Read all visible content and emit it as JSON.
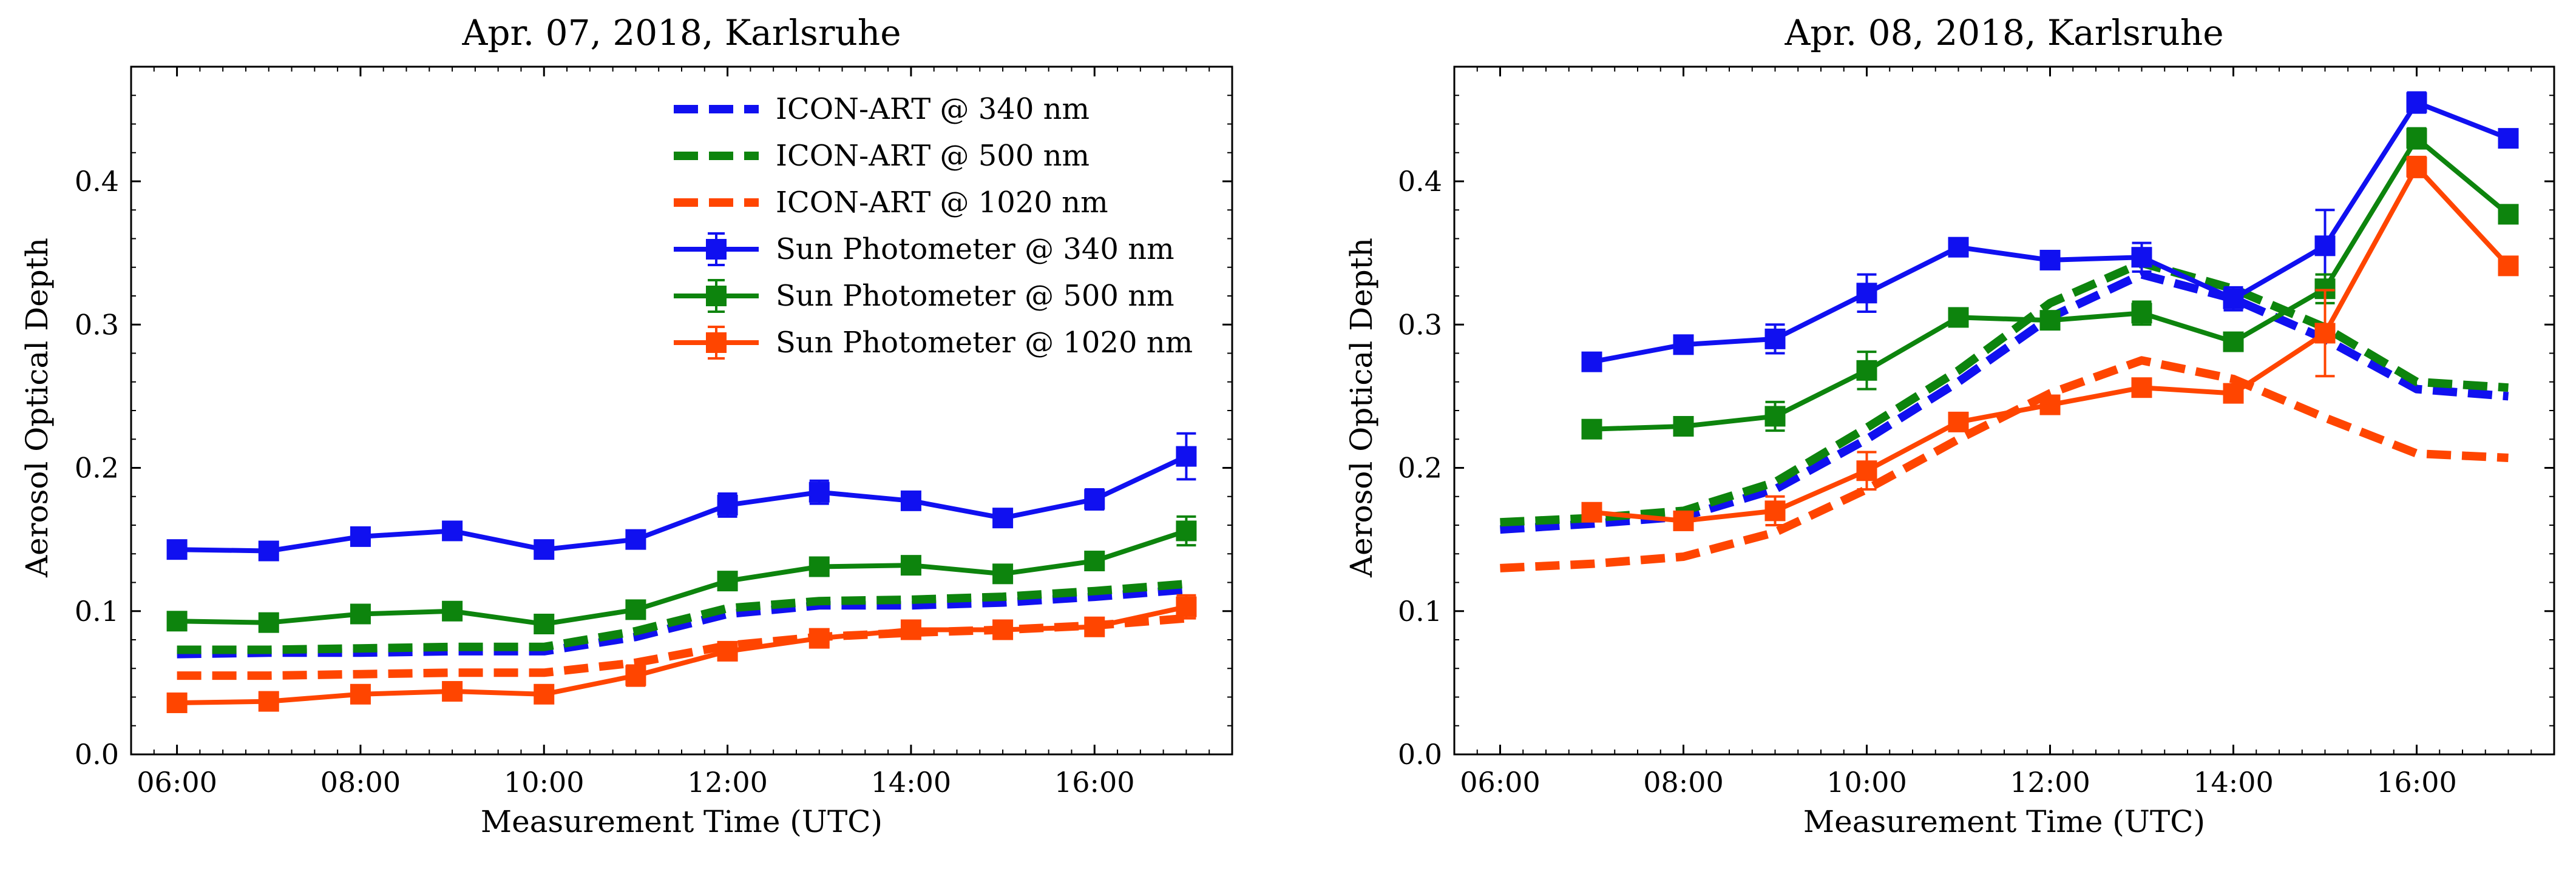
{
  "colors": {
    "blue": "#1010f0",
    "green": "#0d840d",
    "orange": "#ff4500"
  },
  "chart_data": [
    {
      "type": "line",
      "title": "Apr. 07, 2018, Karlsruhe",
      "xlabel": "Measurement Time (UTC)",
      "ylabel": "Aerosol Optical Depth",
      "xlim": [
        5.5,
        17.5
      ],
      "ylim": [
        0.0,
        0.48
      ],
      "xticks": [
        6,
        8,
        10,
        12,
        14,
        16
      ],
      "xtick_labels": [
        "06:00",
        "08:00",
        "10:00",
        "12:00",
        "14:00",
        "16:00"
      ],
      "yticks": [
        0.0,
        0.1,
        0.2,
        0.3,
        0.4
      ],
      "ytick_labels": [
        "0.0",
        "0.1",
        "0.2",
        "0.3",
        "0.4"
      ],
      "legend_position": "top-right",
      "series": [
        {
          "name": "ICON-ART @ 340 nm",
          "color": "blue",
          "style": "dashed",
          "x": [
            6,
            7,
            8,
            9,
            10,
            11,
            12,
            13,
            14,
            15,
            16,
            17
          ],
          "y": [
            0.07,
            0.071,
            0.071,
            0.072,
            0.072,
            0.082,
            0.098,
            0.104,
            0.104,
            0.106,
            0.11,
            0.115
          ]
        },
        {
          "name": "ICON-ART @ 500 nm",
          "color": "green",
          "style": "dashed",
          "x": [
            6,
            7,
            8,
            9,
            10,
            11,
            12,
            13,
            14,
            15,
            16,
            17
          ],
          "y": [
            0.073,
            0.073,
            0.074,
            0.075,
            0.075,
            0.086,
            0.102,
            0.107,
            0.108,
            0.11,
            0.114,
            0.119
          ]
        },
        {
          "name": "ICON-ART @ 1020 nm",
          "color": "orange",
          "style": "dashed",
          "x": [
            6,
            7,
            8,
            9,
            10,
            11,
            12,
            13,
            14,
            15,
            16,
            17
          ],
          "y": [
            0.055,
            0.055,
            0.056,
            0.057,
            0.057,
            0.064,
            0.076,
            0.082,
            0.085,
            0.087,
            0.09,
            0.095
          ]
        },
        {
          "name": "Sun Photometer @ 340 nm",
          "color": "blue",
          "style": "solid-errorbar",
          "x": [
            6,
            7,
            8,
            9,
            10,
            11,
            12,
            13,
            14,
            15,
            16,
            17
          ],
          "y": [
            0.143,
            0.142,
            0.152,
            0.156,
            0.143,
            0.15,
            0.174,
            0.183,
            0.177,
            0.165,
            0.178,
            0.208
          ],
          "err": [
            0.004,
            0.004,
            0.005,
            0.005,
            0.004,
            0.006,
            0.008,
            0.008,
            0.005,
            0.004,
            0.007,
            0.016
          ]
        },
        {
          "name": "Sun Photometer @ 500 nm",
          "color": "green",
          "style": "solid-errorbar",
          "x": [
            6,
            7,
            8,
            9,
            10,
            11,
            12,
            13,
            14,
            15,
            16,
            17
          ],
          "y": [
            0.093,
            0.092,
            0.098,
            0.1,
            0.091,
            0.101,
            0.121,
            0.131,
            0.132,
            0.126,
            0.135,
            0.156
          ],
          "err": [
            0.004,
            0.004,
            0.004,
            0.004,
            0.004,
            0.006,
            0.005,
            0.005,
            0.005,
            0.004,
            0.006,
            0.01
          ]
        },
        {
          "name": "Sun Photometer @ 1020 nm",
          "color": "orange",
          "style": "solid-errorbar",
          "x": [
            6,
            7,
            8,
            9,
            10,
            11,
            12,
            13,
            14,
            15,
            16,
            17
          ],
          "y": [
            0.036,
            0.037,
            0.042,
            0.044,
            0.042,
            0.055,
            0.072,
            0.081,
            0.087,
            0.087,
            0.089,
            0.103
          ],
          "err": [
            0.003,
            0.003,
            0.004,
            0.004,
            0.004,
            0.007,
            0.006,
            0.005,
            0.004,
            0.004,
            0.004,
            0.008
          ]
        }
      ]
    },
    {
      "type": "line",
      "title": "Apr. 08, 2018, Karlsruhe",
      "xlabel": "Measurement Time (UTC)",
      "ylabel": "Aerosol Optical Depth",
      "xlim": [
        5.5,
        17.5
      ],
      "ylim": [
        0.0,
        0.48
      ],
      "xticks": [
        6,
        8,
        10,
        12,
        14,
        16
      ],
      "xtick_labels": [
        "06:00",
        "08:00",
        "10:00",
        "12:00",
        "14:00",
        "16:00"
      ],
      "yticks": [
        0.0,
        0.1,
        0.2,
        0.3,
        0.4
      ],
      "ytick_labels": [
        "0.0",
        "0.1",
        "0.2",
        "0.3",
        "0.4"
      ],
      "legend_position": "none",
      "series": [
        {
          "name": "ICON-ART @ 340 nm",
          "color": "blue",
          "style": "dashed",
          "x": [
            6,
            7,
            8,
            9,
            10,
            11,
            12,
            13,
            14,
            15,
            16,
            17
          ],
          "y": [
            0.157,
            0.161,
            0.166,
            0.185,
            0.22,
            0.26,
            0.305,
            0.335,
            0.318,
            0.29,
            0.255,
            0.25
          ]
        },
        {
          "name": "ICON-ART @ 500 nm",
          "color": "green",
          "style": "dashed",
          "x": [
            6,
            7,
            8,
            9,
            10,
            11,
            12,
            13,
            14,
            15,
            16,
            17
          ],
          "y": [
            0.162,
            0.165,
            0.17,
            0.19,
            0.228,
            0.268,
            0.315,
            0.343,
            0.325,
            0.298,
            0.26,
            0.256
          ]
        },
        {
          "name": "ICON-ART @ 1020 nm",
          "color": "orange",
          "style": "dashed",
          "x": [
            6,
            7,
            8,
            9,
            10,
            11,
            12,
            13,
            14,
            15,
            16,
            17
          ],
          "y": [
            0.13,
            0.133,
            0.138,
            0.155,
            0.185,
            0.22,
            0.252,
            0.275,
            0.262,
            0.235,
            0.21,
            0.207
          ]
        },
        {
          "name": "Sun Photometer @ 340 nm",
          "color": "blue",
          "style": "solid-errorbar",
          "x": [
            7,
            8,
            9,
            10,
            11,
            12,
            13,
            14,
            15,
            16,
            17
          ],
          "y": [
            0.274,
            0.286,
            0.29,
            0.322,
            0.354,
            0.345,
            0.347,
            0.318,
            0.355,
            0.455,
            0.43
          ],
          "err": [
            0.005,
            0.005,
            0.01,
            0.013,
            0.005,
            0.006,
            0.01,
            0.008,
            0.025,
            0.007,
            0.006
          ]
        },
        {
          "name": "Sun Photometer @ 500 nm",
          "color": "green",
          "style": "solid-errorbar",
          "x": [
            7,
            8,
            9,
            10,
            11,
            12,
            13,
            14,
            15,
            16,
            17
          ],
          "y": [
            0.227,
            0.229,
            0.236,
            0.268,
            0.305,
            0.303,
            0.308,
            0.288,
            0.325,
            0.43,
            0.377
          ],
          "err": [
            0.005,
            0.005,
            0.01,
            0.013,
            0.005,
            0.006,
            0.008,
            0.006,
            0.01,
            0.007,
            0.006
          ]
        },
        {
          "name": "Sun Photometer @ 1020 nm",
          "color": "orange",
          "style": "solid-errorbar",
          "x": [
            7,
            8,
            9,
            10,
            11,
            12,
            13,
            14,
            15,
            16,
            17
          ],
          "y": [
            0.169,
            0.163,
            0.17,
            0.198,
            0.232,
            0.244,
            0.256,
            0.252,
            0.294,
            0.41,
            0.341
          ],
          "err": [
            0.005,
            0.005,
            0.01,
            0.013,
            0.005,
            0.006,
            0.006,
            0.006,
            0.03,
            0.007,
            0.006
          ]
        }
      ]
    }
  ]
}
